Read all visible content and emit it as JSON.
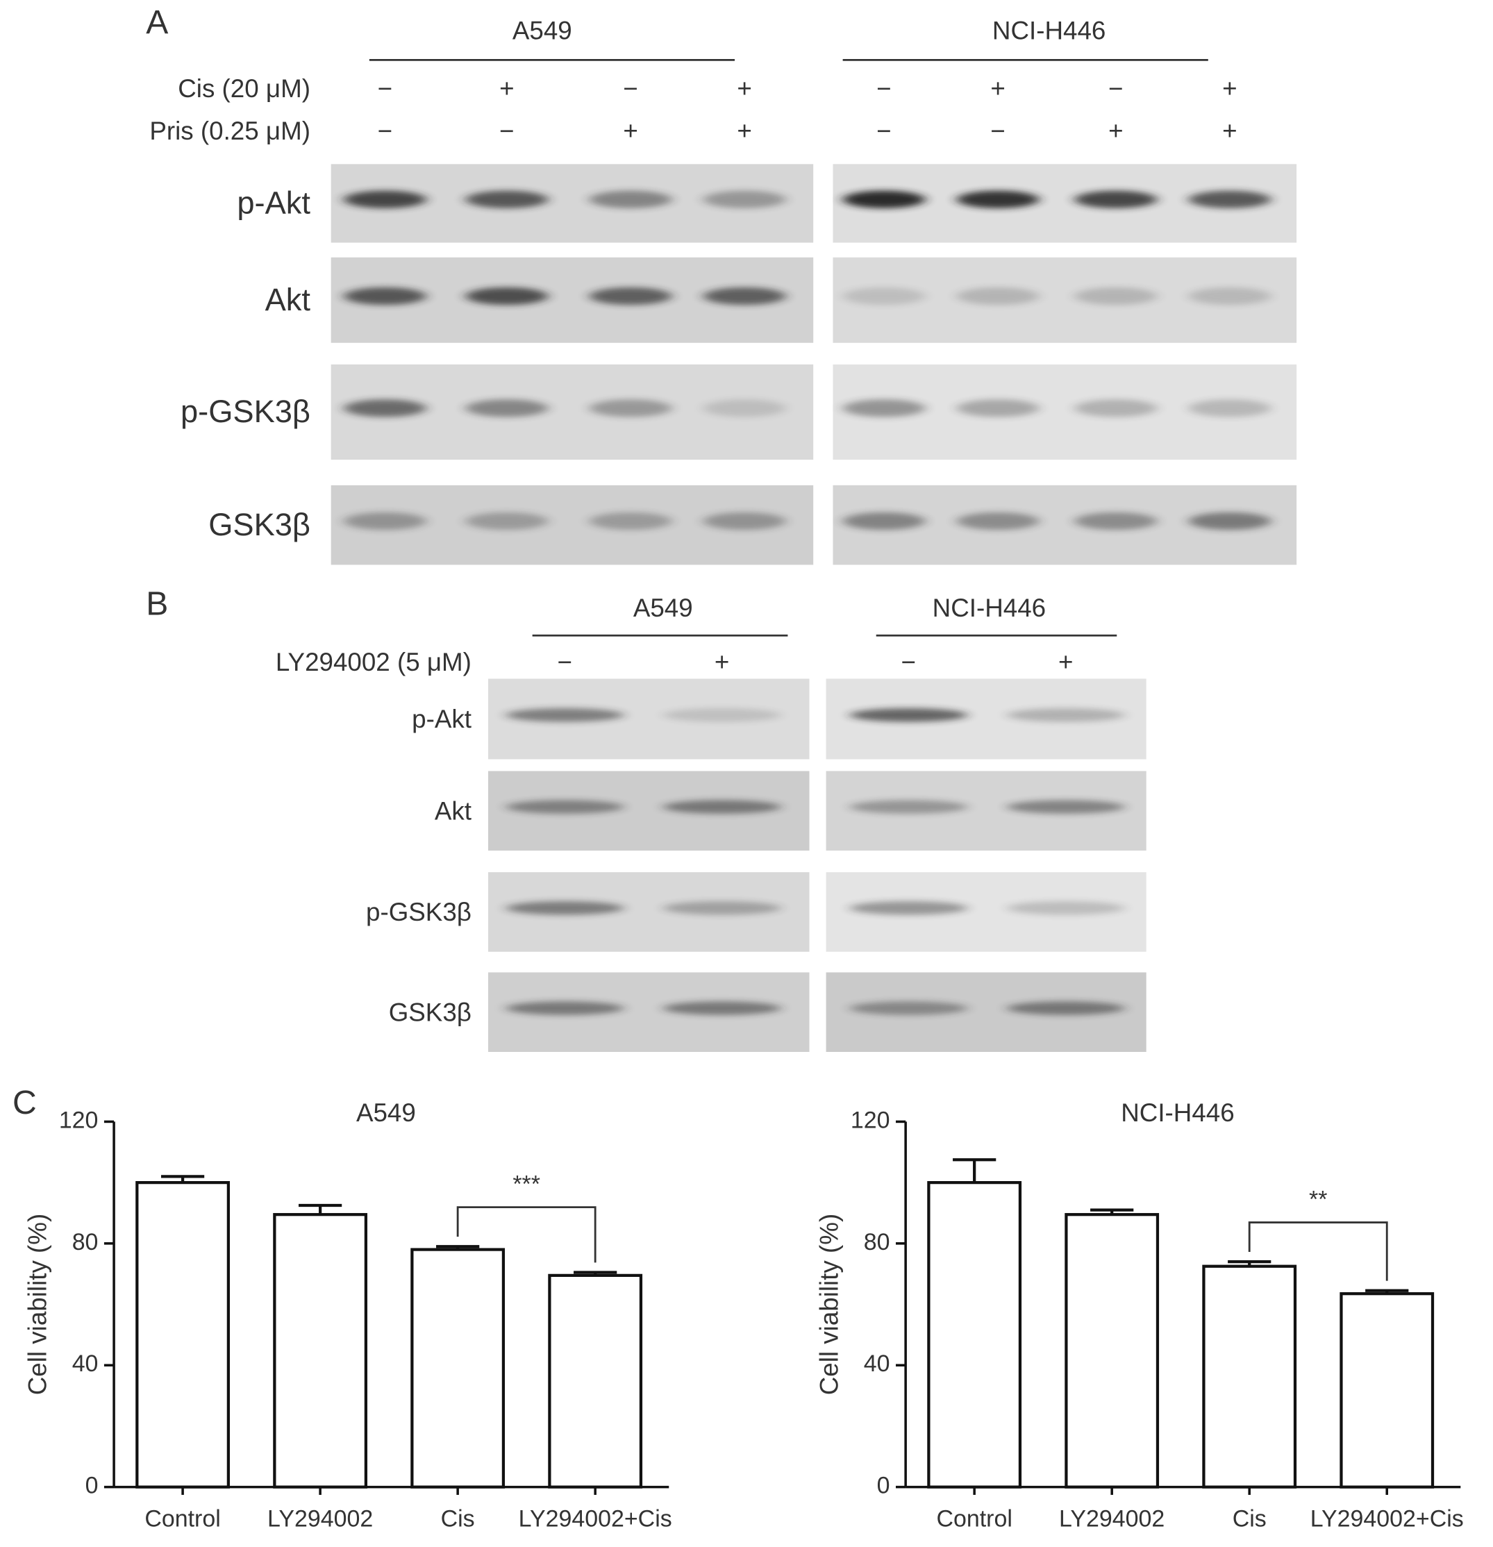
{
  "panel_a": {
    "label": "A",
    "cell_lines": [
      "A549",
      "NCI-H446"
    ],
    "treatments": [
      {
        "name": "Cis (20 μM)",
        "signs": [
          "−",
          "+",
          "−",
          "+"
        ]
      },
      {
        "name": "Pris (0.25 μM)",
        "signs": [
          "−",
          "−",
          "+",
          "+"
        ]
      }
    ],
    "proteins": [
      "p-Akt",
      "Akt",
      "p-GSK3β",
      "GSK3β"
    ]
  },
  "panel_b": {
    "label": "B",
    "cell_lines": [
      "A549",
      "NCI-H446"
    ],
    "treatments": [
      {
        "name": "LY294002 (5 μM)",
        "signs": [
          "−",
          "+"
        ]
      }
    ],
    "proteins": [
      "p-Akt",
      "Akt",
      "p-GSK3β",
      "GSK3β"
    ]
  },
  "panel_c": {
    "label": "C"
  },
  "chart_data": [
    {
      "type": "bar",
      "title": "A549",
      "y_label": "Cell viability (%)",
      "categories": [
        "Control",
        "LY294002",
        "Cis",
        "LY294002+Cis"
      ],
      "values": [
        100,
        89.5,
        78,
        69.5
      ],
      "errors": [
        2,
        3,
        1,
        1
      ],
      "ylim": [
        0,
        120
      ],
      "yticks": [
        0,
        40,
        80,
        120
      ],
      "color": "#ffffff",
      "annotation": {
        "text": "***",
        "from": "Cis",
        "to": "LY294002+Cis"
      }
    },
    {
      "type": "bar",
      "title": "NCI-H446",
      "y_label": "Cell viability (%)",
      "categories": [
        "Control",
        "LY294002",
        "Cis",
        "LY294002+Cis"
      ],
      "values": [
        100,
        89.5,
        72.5,
        63.5
      ],
      "errors": [
        7.5,
        1.5,
        1.5,
        1
      ],
      "ylim": [
        0,
        120
      ],
      "yticks": [
        0,
        40,
        80,
        120
      ],
      "color": "#ffffff",
      "annotation": {
        "text": "**",
        "from": "Cis",
        "to": "LY294002+Cis"
      }
    }
  ]
}
